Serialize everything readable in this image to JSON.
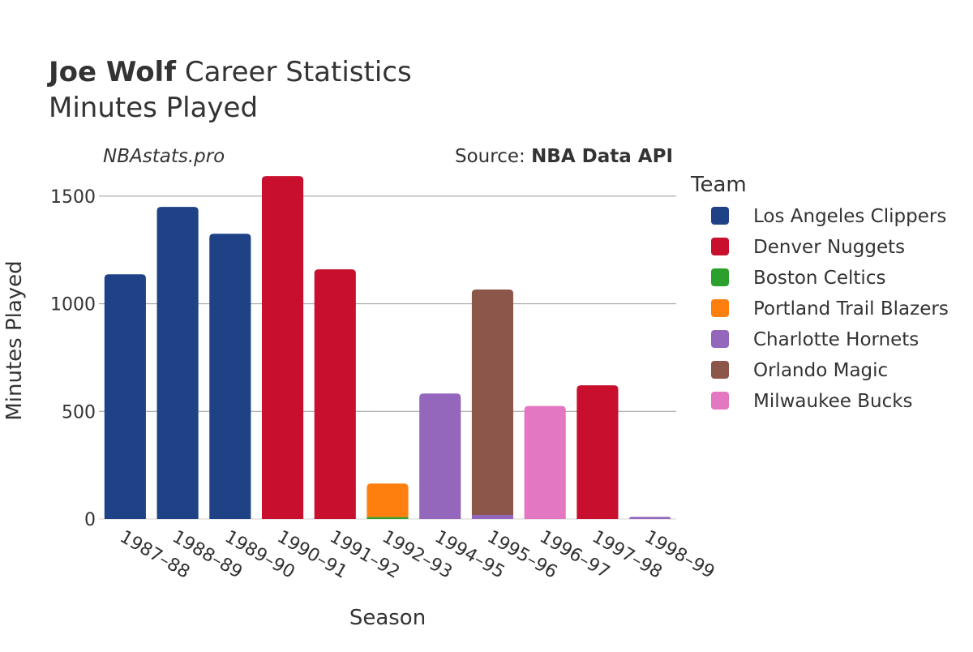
{
  "chart_data": {
    "type": "bar",
    "barmode": "stack",
    "title_bold": "Joe Wolf",
    "title_rest": " Career Statistics",
    "subtitle": "Minutes Played",
    "watermark": "NBAstats.pro",
    "source_prefix": "Source: ",
    "source_name": "NBA Data API",
    "xlabel": "Season",
    "ylabel": "Minutes Played",
    "ylim": [
      0,
      1620
    ],
    "yticks": [
      0,
      500,
      1000,
      1500
    ],
    "grid": true,
    "legend_title": "Team",
    "legend_position": "right",
    "categories": [
      "1987–88",
      "1988–89",
      "1989–90",
      "1990–91",
      "1991–92",
      "1992–93",
      "1994–95",
      "1995–96",
      "1996–97",
      "1997–98",
      "1998–99"
    ],
    "series": [
      {
        "name": "Los Angeles Clippers",
        "color": "#1f4287",
        "values": [
          1137,
          1450,
          1325,
          0,
          0,
          0,
          0,
          0,
          0,
          0,
          0
        ]
      },
      {
        "name": "Denver Nuggets",
        "color": "#c8102e",
        "values": [
          0,
          0,
          0,
          1593,
          1160,
          0,
          0,
          0,
          0,
          621,
          0
        ]
      },
      {
        "name": "Boston Celtics",
        "color": "#2ca02c",
        "values": [
          0,
          0,
          0,
          0,
          0,
          9,
          0,
          0,
          0,
          0,
          0
        ]
      },
      {
        "name": "Portland Trail Blazers",
        "color": "#ff7f0e",
        "values": [
          0,
          0,
          0,
          0,
          0,
          156,
          0,
          0,
          0,
          0,
          0
        ]
      },
      {
        "name": "Charlotte Hornets",
        "color": "#9467bd",
        "values": [
          0,
          0,
          0,
          0,
          0,
          0,
          583,
          19,
          0,
          0,
          10
        ]
      },
      {
        "name": "Orlando Magic",
        "color": "#8c564b",
        "values": [
          0,
          0,
          0,
          0,
          0,
          0,
          0,
          1047,
          0,
          0,
          0
        ]
      },
      {
        "name": "Milwaukee Bucks",
        "color": "#e377c2",
        "values": [
          0,
          0,
          0,
          0,
          0,
          0,
          0,
          0,
          525,
          0,
          0
        ]
      }
    ]
  }
}
